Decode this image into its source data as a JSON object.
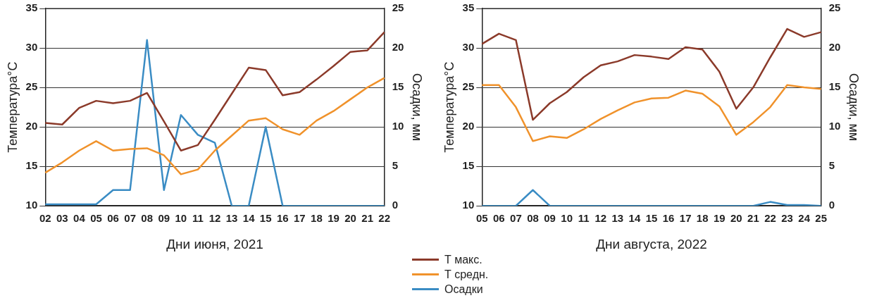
{
  "chart_data": [
    {
      "type": "line",
      "xlabel": "Дни июня, 2021",
      "ylabel": "Температура°C",
      "y2label": "Осадки, мм",
      "categories": [
        "02",
        "03",
        "04",
        "05",
        "06",
        "07",
        "08",
        "09",
        "10",
        "11",
        "12",
        "13",
        "14",
        "15",
        "16",
        "17",
        "18",
        "19",
        "20",
        "21",
        "22"
      ],
      "ylim": [
        10,
        35
      ],
      "yticks": [
        10,
        15,
        20,
        25,
        30,
        35
      ],
      "y2lim": [
        0,
        25
      ],
      "y2ticks": [
        0,
        5,
        10,
        15,
        20,
        25
      ],
      "grid": "y",
      "legend": "bottom",
      "series": [
        {
          "name": "Т макс.",
          "color": "#8b3a2a",
          "values": [
            20.5,
            20.3,
            22.4,
            23.3,
            23.0,
            23.3,
            24.3,
            20.7,
            17.0,
            17.7,
            20.9,
            24.2,
            27.5,
            27.2,
            24.0,
            24.4,
            26.0,
            27.7,
            29.5,
            29.7,
            32.0
          ]
        },
        {
          "name": "Т средн.",
          "color": "#f0922b",
          "values": [
            14.2,
            15.5,
            17.0,
            18.2,
            17.0,
            17.2,
            17.3,
            16.4,
            14.0,
            14.6,
            17.0,
            18.9,
            20.8,
            21.1,
            19.7,
            19.0,
            20.8,
            22.0,
            23.5,
            25.0,
            26.2
          ]
        },
        {
          "name": "Осадки",
          "color": "#3a8cc4",
          "axis": "y2",
          "values": [
            0.2,
            0.2,
            0.2,
            0.2,
            2,
            2,
            21,
            2,
            11.5,
            9,
            8,
            0,
            0,
            10,
            0,
            0,
            0,
            0,
            0,
            0,
            0
          ]
        }
      ]
    },
    {
      "type": "line",
      "xlabel": "Дни августа, 2022",
      "ylabel": "Температура°C",
      "y2label": "Осадки, мм",
      "categories": [
        "05",
        "06",
        "07",
        "08",
        "09",
        "10",
        "11",
        "12",
        "13",
        "14",
        "15",
        "16",
        "17",
        "18",
        "19",
        "20",
        "21",
        "22",
        "23",
        "24",
        "25"
      ],
      "ylim": [
        10,
        35
      ],
      "yticks": [
        10,
        15,
        20,
        25,
        30,
        35
      ],
      "y2lim": [
        0,
        25
      ],
      "y2ticks": [
        0,
        5,
        10,
        15,
        20,
        25
      ],
      "grid": "y",
      "series": [
        {
          "color": "#8b3a2a",
          "values": [
            30.5,
            31.8,
            31.0,
            20.9,
            23.0,
            24.4,
            26.3,
            27.8,
            28.3,
            29.1,
            28.9,
            28.6,
            30.1,
            29.8,
            27.0,
            22.3,
            25.0,
            28.8,
            32.4,
            31.4,
            32.0
          ]
        },
        {
          "color": "#f0922b",
          "values": [
            25.3,
            25.3,
            22.5,
            18.2,
            18.8,
            18.6,
            19.7,
            21.0,
            22.1,
            23.1,
            23.6,
            23.7,
            24.6,
            24.2,
            22.6,
            19.0,
            20.6,
            22.5,
            25.3,
            25.0,
            24.8
          ]
        },
        {
          "color": "#3a8cc4",
          "axis": "y2",
          "values": [
            0,
            0,
            0,
            2,
            0,
            0,
            0,
            0,
            0,
            0,
            0,
            0,
            0,
            0,
            0,
            0,
            0,
            0.5,
            0.1,
            0.1,
            0
          ]
        }
      ]
    }
  ]
}
